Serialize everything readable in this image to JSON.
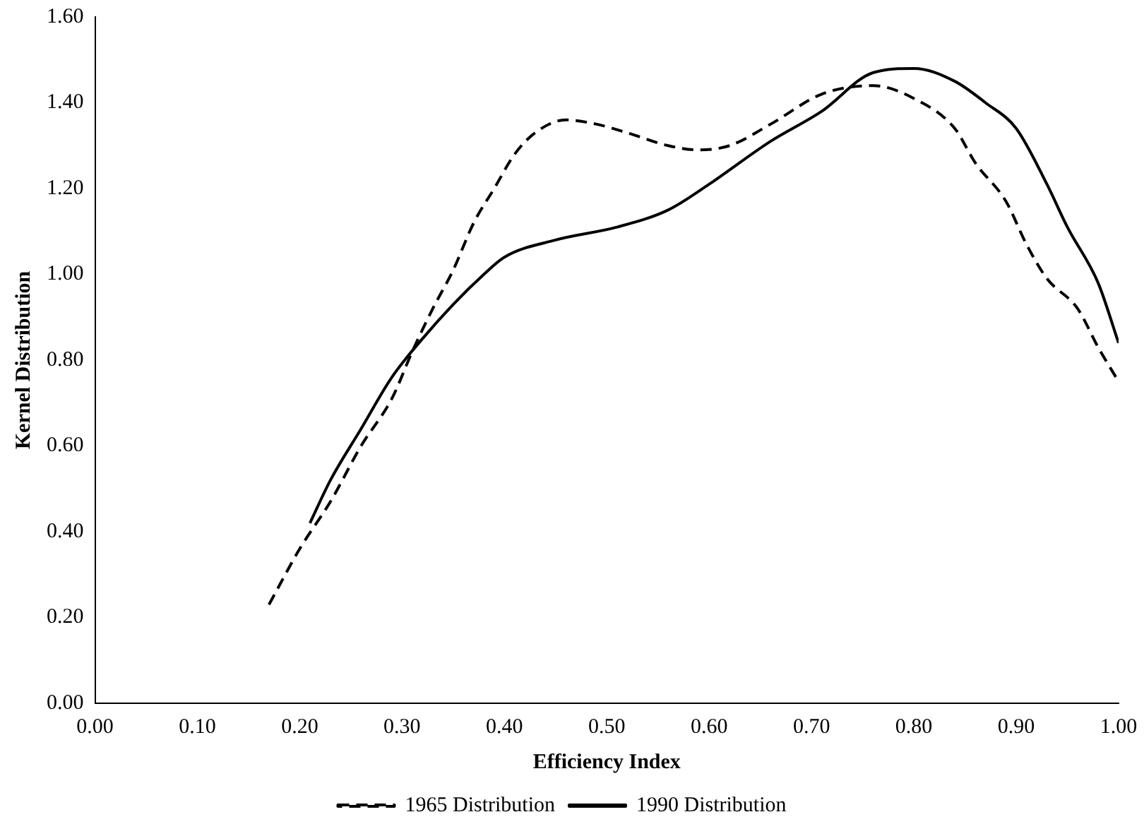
{
  "chart_data": {
    "type": "line",
    "xlabel": "Efficiency Index",
    "ylabel": "Kernel Distribution",
    "xlim": [
      0,
      1
    ],
    "ylim": [
      0,
      1.6
    ],
    "xticks": [
      {
        "value": 0,
        "label": "0.00"
      },
      {
        "value": 0.1,
        "label": "0.10"
      },
      {
        "value": 0.2,
        "label": "0.20"
      },
      {
        "value": 0.3,
        "label": "0.30"
      },
      {
        "value": 0.4,
        "label": "0.40"
      },
      {
        "value": 0.5,
        "label": "0.50"
      },
      {
        "value": 0.6,
        "label": "0.60"
      },
      {
        "value": 0.7,
        "label": "0.70"
      },
      {
        "value": 0.8,
        "label": "0.80"
      },
      {
        "value": 0.9,
        "label": "0.90"
      },
      {
        "value": 1,
        "label": "1.00"
      }
    ],
    "yticks": [
      {
        "value": 0,
        "label": "0.00"
      },
      {
        "value": 0.2,
        "label": "0.20"
      },
      {
        "value": 0.4,
        "label": "0.40"
      },
      {
        "value": 0.6,
        "label": "0.60"
      },
      {
        "value": 0.8,
        "label": "0.80"
      },
      {
        "value": 1,
        "label": "1.00"
      },
      {
        "value": 1.2,
        "label": "1.20"
      },
      {
        "value": 1.4,
        "label": "1.40"
      },
      {
        "value": 1.6,
        "label": "1.60"
      }
    ],
    "grid": false,
    "legend": "bottom",
    "marker": "none",
    "series": [
      {
        "name": "1965 Distribution",
        "color": "#000000",
        "line_style": "dashed",
        "x": [
          0.17,
          0.2,
          0.23,
          0.26,
          0.29,
          0.31,
          0.33,
          0.35,
          0.37,
          0.39,
          0.41,
          0.43,
          0.46,
          0.49,
          0.52,
          0.56,
          0.59,
          0.62,
          0.66,
          0.71,
          0.76,
          0.8,
          0.84,
          0.86,
          0.89,
          0.91,
          0.93,
          0.96,
          0.98,
          1.0
        ],
        "values": [
          0.23,
          0.36,
          0.47,
          0.6,
          0.71,
          0.82,
          0.92,
          1.01,
          1.12,
          1.2,
          1.28,
          1.33,
          1.36,
          1.35,
          1.33,
          1.3,
          1.29,
          1.3,
          1.35,
          1.42,
          1.44,
          1.41,
          1.34,
          1.26,
          1.17,
          1.07,
          0.99,
          0.92,
          0.83,
          0.75
        ]
      },
      {
        "name": "1990 Distribution",
        "color": "#000000",
        "line_style": "solid",
        "x": [
          0.21,
          0.23,
          0.26,
          0.29,
          0.32,
          0.35,
          0.38,
          0.4,
          0.45,
          0.51,
          0.56,
          0.6,
          0.66,
          0.71,
          0.76,
          0.8,
          0.84,
          0.87,
          0.9,
          0.93,
          0.95,
          0.98,
          1.0
        ],
        "values": [
          0.42,
          0.52,
          0.64,
          0.76,
          0.85,
          0.93,
          1.0,
          1.04,
          1.08,
          1.11,
          1.15,
          1.21,
          1.31,
          1.38,
          1.47,
          1.48,
          1.45,
          1.4,
          1.34,
          1.21,
          1.11,
          0.98,
          0.84
        ]
      }
    ]
  }
}
